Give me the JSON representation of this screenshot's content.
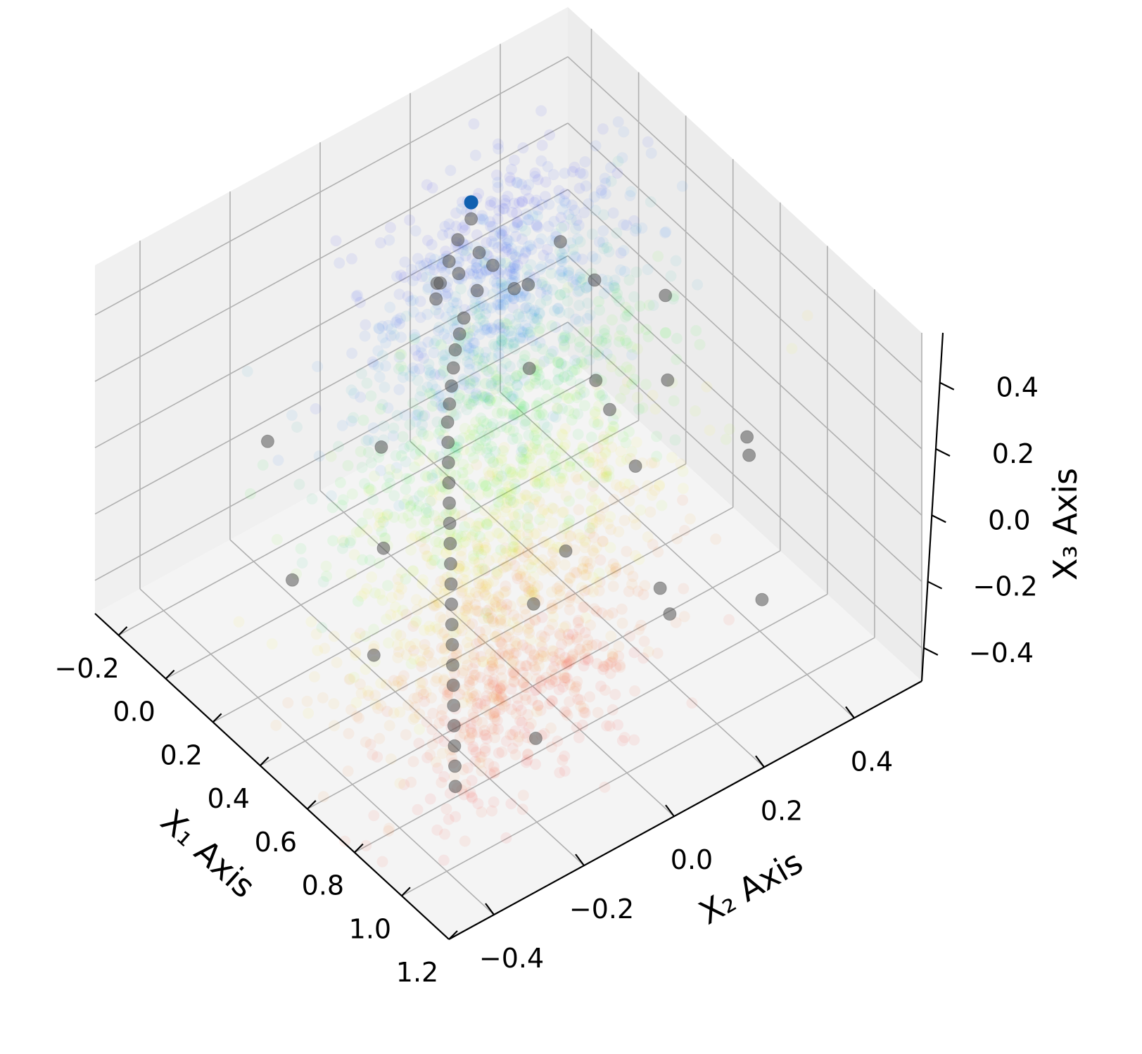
{
  "chart_data": {
    "type": "scatter",
    "projection": "3d",
    "title": "",
    "xlabel": "X₁ Axis",
    "ylabel": "X₂ Axis",
    "zlabel": "X₃ Axis",
    "xlim": [
      -0.3,
      1.2
    ],
    "ylim": [
      -0.5,
      0.55
    ],
    "zlim": [
      -0.5,
      0.55
    ],
    "xticks": [
      -0.2,
      0.0,
      0.2,
      0.4,
      0.6,
      0.8,
      1.0,
      1.2
    ],
    "xtick_labels": [
      "−0.2",
      "0.0",
      "0.2",
      "0.4",
      "0.6",
      "0.8",
      "1.0",
      "1.2"
    ],
    "yticks": [
      -0.4,
      -0.2,
      0.0,
      0.2,
      0.4
    ],
    "ytick_labels": [
      "−0.4",
      "−0.2",
      "0.0",
      "0.2",
      "0.4"
    ],
    "zticks": [
      -0.4,
      -0.2,
      0.0,
      0.2,
      0.4
    ],
    "ztick_labels": [
      "−0.4",
      "−0.2",
      "0.0",
      "0.2",
      "0.4"
    ],
    "grid": true,
    "legend": "none",
    "pane_color": "#f2f2f2",
    "colormap": [
      "#0000ff",
      "#0080ff",
      "#00ff00",
      "#ffff00",
      "#ff8000",
      "#ff0000"
    ],
    "background_cloud": {
      "description_colors": "points colored blue to red along X1",
      "alpha": 0.05,
      "color_low": "#0000ff",
      "color_high": "#ff0000",
      "approx_count": 2400
    },
    "trajectory": {
      "color": "#555555",
      "alpha": 0.55,
      "highlight_color": "#1060b0",
      "points": [
        [
          -0.08,
          0.22,
          0.3
        ],
        [
          -0.06,
          0.18,
          0.28
        ],
        [
          -0.04,
          0.15,
          0.25
        ],
        [
          -0.02,
          0.12,
          0.22
        ],
        [
          0.0,
          0.1,
          0.2
        ],
        [
          0.02,
          0.14,
          0.26
        ],
        [
          0.03,
          0.18,
          0.3
        ],
        [
          0.05,
          0.2,
          0.26
        ],
        [
          0.06,
          0.16,
          0.22
        ],
        [
          0.08,
          0.12,
          0.18
        ],
        [
          0.1,
          0.1,
          0.16
        ],
        [
          0.12,
          0.08,
          0.14
        ],
        [
          0.15,
          0.06,
          0.12
        ],
        [
          0.18,
          0.04,
          0.1
        ],
        [
          0.21,
          0.02,
          0.08
        ],
        [
          0.24,
          0.0,
          0.06
        ],
        [
          0.28,
          -0.02,
          0.04
        ],
        [
          0.32,
          -0.04,
          0.02
        ],
        [
          0.36,
          -0.06,
          0.0
        ],
        [
          0.4,
          -0.08,
          -0.02
        ],
        [
          0.44,
          -0.1,
          -0.04
        ],
        [
          0.48,
          -0.12,
          -0.06
        ],
        [
          0.52,
          -0.14,
          -0.08
        ],
        [
          0.56,
          -0.16,
          -0.1
        ],
        [
          0.6,
          -0.18,
          -0.12
        ],
        [
          0.64,
          -0.2,
          -0.14
        ],
        [
          0.68,
          -0.22,
          -0.16
        ],
        [
          0.72,
          -0.24,
          -0.18
        ],
        [
          0.76,
          -0.26,
          -0.2
        ],
        [
          0.8,
          -0.28,
          -0.22
        ],
        [
          0.84,
          -0.3,
          -0.24
        ],
        [
          0.88,
          -0.32,
          -0.26
        ],
        [
          0.92,
          -0.34,
          -0.28
        ],
        [
          0.96,
          -0.36,
          -0.3
        ]
      ],
      "scattered_points": [
        [
          0.05,
          0.35,
          0.22
        ],
        [
          -0.05,
          0.3,
          0.05
        ],
        [
          0.1,
          0.4,
          0.1
        ],
        [
          0.2,
          0.35,
          -0.1
        ],
        [
          0.15,
          -0.1,
          0.0
        ],
        [
          0.3,
          0.15,
          0.15
        ],
        [
          0.35,
          -0.2,
          -0.1
        ],
        [
          0.45,
          0.25,
          0.05
        ],
        [
          0.55,
          0.1,
          -0.2
        ],
        [
          0.6,
          0.3,
          0.2
        ],
        [
          0.7,
          -0.05,
          -0.15
        ],
        [
          0.8,
          0.2,
          -0.3
        ],
        [
          0.85,
          0.35,
          0.1
        ],
        [
          0.95,
          0.1,
          -0.05
        ],
        [
          1.0,
          0.3,
          -0.2
        ],
        [
          0.05,
          -0.3,
          0.1
        ],
        [
          0.25,
          -0.35,
          -0.15
        ],
        [
          0.4,
          0.4,
          0.25
        ],
        [
          0.5,
          -0.3,
          -0.25
        ],
        [
          0.65,
          0.45,
          -0.05
        ],
        [
          0.9,
          -0.15,
          -0.35
        ],
        [
          0.1,
          0.05,
          0.35
        ],
        [
          0.2,
          0.2,
          0.3
        ],
        [
          0.75,
          0.15,
          0.15
        ]
      ]
    }
  }
}
